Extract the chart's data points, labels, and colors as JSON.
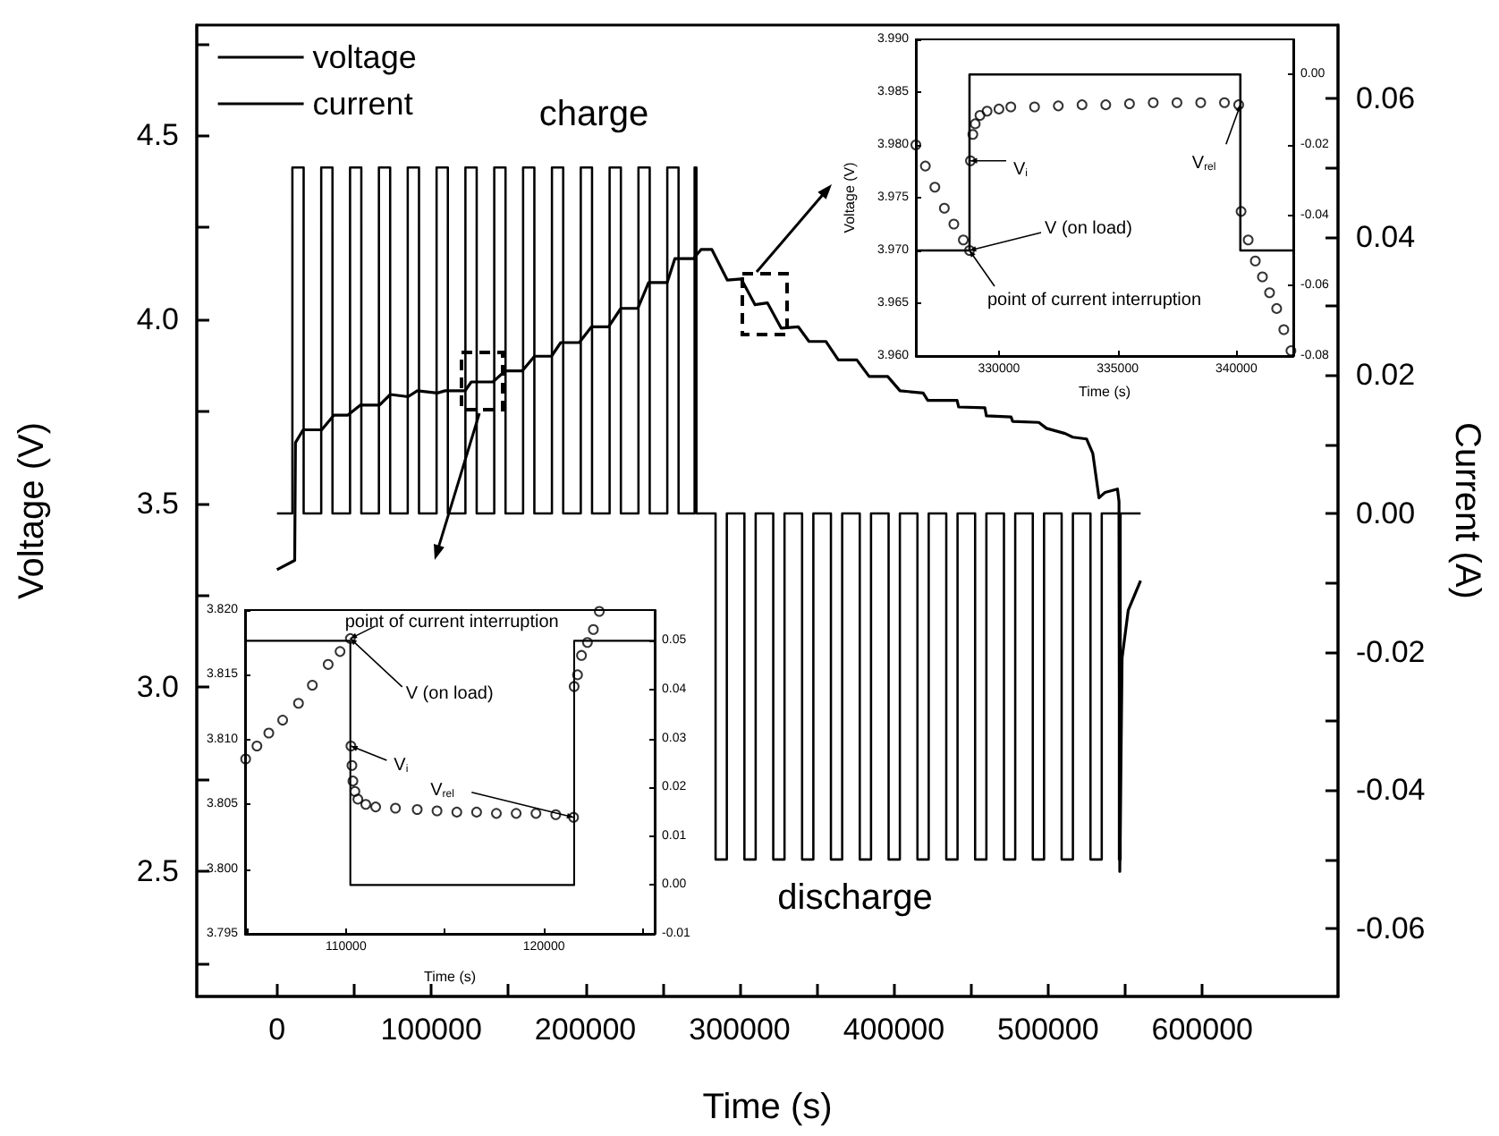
{
  "chart_data": [
    {
      "type": "line",
      "xlabel": "Time (s)",
      "ylabel": "Voltage (V)",
      "y2label": "Current (A)",
      "xlim": [
        -52000,
        688000
      ],
      "xticks": [
        0,
        {
          "value": 50000,
          "label": null
        },
        100000,
        {
          "value": 150000,
          "label": null
        },
        200000,
        {
          "value": 250000,
          "label": null
        },
        300000,
        {
          "value": 350000,
          "label": null
        },
        400000,
        {
          "value": 450000,
          "label": null
        },
        500000,
        {
          "value": 550000,
          "label": null
        },
        600000
      ],
      "ylim": [
        2.16,
        4.8
      ],
      "yticks": [
        {
          "value": 2.25,
          "label": null
        },
        2.5,
        {
          "value": 2.75,
          "label": null
        },
        {
          "value": 3,
          "label": "3.0"
        },
        {
          "value": 3.25,
          "label": null
        },
        3.5,
        {
          "value": 3.75,
          "label": null
        },
        {
          "value": 4,
          "label": "4.0"
        },
        {
          "value": 4.25,
          "label": null
        },
        4.5,
        {
          "value": 4.75,
          "label": null
        }
      ],
      "y2lim": [
        -0.0698,
        0.0706
      ],
      "y2ticks": [
        -0.06,
        {
          "value": -0.05,
          "label": null
        },
        -0.04,
        {
          "value": -0.03,
          "label": null
        },
        -0.02,
        {
          "value": -0.01,
          "label": null
        },
        {
          "value": 0,
          "label": "0.00"
        },
        {
          "value": 0.01,
          "label": null
        },
        0.02,
        {
          "value": 0.03,
          "label": null
        },
        0.04,
        {
          "value": 0.05,
          "label": null
        },
        0.06
      ],
      "grid": false,
      "legend": "top left",
      "marker": "none",
      "line_style": "solid",
      "annotations": [
        "charge",
        "discharge"
      ],
      "series": [
        {
          "name": "voltage",
          "color": "#000000",
          "x": [
            0,
            11500,
            12000,
            17000,
            29000,
            37000,
            46000,
            54000,
            66500,
            73500,
            85000,
            91000,
            104000,
            109000,
            122000,
            126000,
            140000,
            148000,
            159000,
            167000,
            178000,
            184000,
            196000,
            204000,
            215000,
            223000,
            234000,
            241000,
            253000,
            258000,
            270000,
            275000,
            282000,
            292000,
            301000,
            310000,
            318000,
            327000,
            338000,
            345000,
            356000,
            364000,
            376000,
            384000,
            396000,
            404000,
            419000,
            422000,
            441000,
            442000,
            459000,
            460000,
            476000,
            477000,
            494000,
            499000,
            511000,
            516000,
            525000,
            529000,
            533000,
            537000,
            545000,
            546000,
            546500,
            548000,
            552000,
            560000
          ],
          "values": [
            3.32,
            3.345,
            3.665,
            3.7,
            3.7,
            3.74,
            3.74,
            3.767,
            3.767,
            3.796,
            3.79,
            3.806,
            3.8,
            3.806,
            3.806,
            3.83,
            3.83,
            3.86,
            3.86,
            3.9,
            3.9,
            3.937,
            3.937,
            3.98,
            3.98,
            4.03,
            4.03,
            4.1,
            4.1,
            4.165,
            4.165,
            4.19,
            4.19,
            4.107,
            4.11,
            4.04,
            4.045,
            3.976,
            3.98,
            3.94,
            3.94,
            3.89,
            3.89,
            3.845,
            3.845,
            3.806,
            3.8,
            3.78,
            3.78,
            3.762,
            3.76,
            3.738,
            3.735,
            3.723,
            3.72,
            3.704,
            3.69,
            3.68,
            3.675,
            3.636,
            3.515,
            3.53,
            3.539,
            3.505,
            2.5,
            3.08,
            3.21,
            3.29
          ]
        },
        {
          "name": "current",
          "type": "step",
          "axis": "y2",
          "color": "#000000",
          "x": [
            0,
            10000,
            17300,
            28700,
            36000,
            47400,
            54700,
            66100,
            73400,
            84800,
            92100,
            103500,
            110800,
            122200,
            129500,
            140900,
            148200,
            159600,
            166900,
            178300,
            185600,
            197000,
            204300,
            215700,
            223000,
            234400,
            241700,
            253100,
            260400,
            270800,
            272000,
            284400,
            291700,
            303100,
            310400,
            321800,
            329100,
            340500,
            347800,
            359200,
            366500,
            377900,
            385200,
            396600,
            403900,
            415300,
            422600,
            434000,
            441300,
            452700,
            460000,
            471400,
            478700,
            490100,
            497400,
            508800,
            516100,
            527500,
            534800,
            546000,
            547000,
            560000
          ],
          "values": [
            0,
            0.05,
            0,
            0.05,
            0,
            0.05,
            0,
            0.05,
            0,
            0.05,
            0,
            0.05,
            0,
            0.05,
            0,
            0.05,
            0,
            0.05,
            0,
            0.05,
            0,
            0.05,
            0,
            0.05,
            0,
            0.05,
            0,
            0.05,
            0,
            0.05,
            0,
            -0.05,
            0,
            -0.05,
            0,
            -0.05,
            0,
            -0.05,
            0,
            -0.05,
            0,
            -0.05,
            0,
            -0.05,
            0,
            -0.05,
            0,
            -0.05,
            0,
            -0.05,
            0,
            -0.05,
            0,
            -0.05,
            0,
            -0.05,
            0,
            -0.05,
            0,
            -0.05,
            0,
            0
          ]
        }
      ]
    },
    {
      "type": "scatter",
      "xlabel": "Time (s)",
      "ylabel": "Voltage (V)",
      "xlim": [
        326500,
        342400
      ],
      "xticks": [
        330000,
        335000,
        340000
      ],
      "ylim": [
        3.96,
        3.99
      ],
      "yticks": [
        {
          "value": 3.96,
          "label": "3.960"
        },
        {
          "value": 3.965,
          "label": "3.965"
        },
        {
          "value": 3.97,
          "label": "3.970"
        },
        {
          "value": 3.975,
          "label": "3.975"
        },
        {
          "value": 3.98,
          "label": "3.980"
        },
        {
          "value": 3.985,
          "label": "3.985"
        },
        {
          "value": 3.99,
          "label": "3.990"
        }
      ],
      "y2lim": [
        -0.08,
        0.01
      ],
      "y2ticks": [
        -0.08,
        -0.06,
        -0.04,
        -0.02,
        {
          "value": 0,
          "label": "0.00"
        }
      ],
      "grid": false,
      "annotations": [
        {
          "text": "V$_{i}$",
          "x": 328800,
          "y": 3.9785
        },
        {
          "text": "V$_{rel}$",
          "x": 340170,
          "y": 3.9838
        },
        {
          "text": "V (on load)",
          "x": 328760,
          "y": 3.97
        },
        {
          "text": "point of current interruption",
          "x": 328760,
          "y": 3.97
        }
      ],
      "series": [
        {
          "color": "#000000",
          "marker": "circle",
          "x": [
            326500,
            326900,
            327300,
            327700,
            328100,
            328500,
            328760,
            328800,
            328900,
            329000,
            329200,
            329500,
            330000,
            330500,
            331500,
            332500,
            333500,
            334500,
            335500,
            336500,
            337500,
            338500,
            339500,
            340100,
            340200,
            340500,
            340800,
            341100,
            341400,
            341700,
            342000,
            342300
          ],
          "values": [
            3.98,
            3.978,
            3.976,
            3.974,
            3.9725,
            3.971,
            3.97,
            3.9785,
            3.981,
            3.982,
            3.9828,
            3.9832,
            3.9834,
            3.9836,
            3.9836,
            3.9837,
            3.9838,
            3.9838,
            3.9839,
            3.984,
            3.984,
            3.984,
            3.984,
            3.9838,
            3.9737,
            3.971,
            3.969,
            3.9675,
            3.966,
            3.9645,
            3.9625,
            3.9605
          ]
        },
        {
          "type": "step",
          "axis": "y2",
          "marker": "none",
          "color": "#000000",
          "x": [
            326500,
            328760,
            340170,
            342400
          ],
          "values": [
            -0.05,
            0,
            -0.05,
            -0.05
          ]
        }
      ]
    },
    {
      "type": "scatter",
      "xlabel": "Time (s)",
      "xlim": [
        104900,
        125600
      ],
      "xticks": [
        {
          "value": 105000,
          "label": null
        },
        110000,
        {
          "value": 115000,
          "label": null
        },
        120000,
        {
          "value": 125000,
          "label": null
        }
      ],
      "ylim": [
        3.795,
        3.82
      ],
      "yticks": [
        {
          "value": 3.795,
          "label": "3.795"
        },
        {
          "value": 3.8,
          "label": "3.800"
        },
        {
          "value": 3.805,
          "label": "3.805"
        },
        {
          "value": 3.81,
          "label": "3.810"
        },
        {
          "value": 3.815,
          "label": "3.815"
        },
        {
          "value": 3.82,
          "label": "3.820"
        }
      ],
      "y2lim": [
        -0.01,
        0.0563
      ],
      "y2ticks": [
        -0.01,
        {
          "value": 0,
          "label": "0.00"
        },
        0.01,
        0.02,
        0.03,
        0.04,
        0.05
      ],
      "grid": false,
      "annotations": [
        {
          "text": "point of current interruption",
          "x": 110220,
          "y": 3.8178
        },
        {
          "text": "V (on load)",
          "x": 110220,
          "y": 3.8178
        },
        {
          "text": "V$_{i}$",
          "x": 110250,
          "y": 3.8095
        },
        {
          "text": "V$_{rel}$",
          "x": 121500,
          "y": 3.804
        }
      ],
      "series": [
        {
          "color": "#000000",
          "marker": "circle",
          "x": [
            104930,
            105500,
            106100,
            106800,
            107600,
            108300,
            109100,
            109700,
            110220,
            110250,
            110300,
            110350,
            110450,
            110600,
            111000,
            111500,
            112500,
            113600,
            114600,
            115600,
            116600,
            117600,
            118600,
            119600,
            120600,
            121500,
            121530,
            121700,
            121900,
            122200,
            122500,
            122800
          ],
          "values": [
            3.8085,
            3.8095,
            3.8105,
            3.8115,
            3.8128,
            3.8142,
            3.8158,
            3.8168,
            3.8178,
            3.8095,
            3.808,
            3.8068,
            3.806,
            3.8054,
            3.805,
            3.8048,
            3.8047,
            3.8046,
            3.8045,
            3.8044,
            3.8044,
            3.8043,
            3.8043,
            3.8043,
            3.8042,
            3.804,
            3.8141,
            3.815,
            3.8165,
            3.8175,
            3.8185,
            3.8199
          ]
        },
        {
          "type": "step",
          "axis": "y2",
          "marker": "none",
          "color": "#000000",
          "x": [
            104930,
            110220,
            121530,
            125600
          ],
          "values": [
            0.05,
            0,
            0.05,
            0.05
          ]
        }
      ]
    }
  ]
}
